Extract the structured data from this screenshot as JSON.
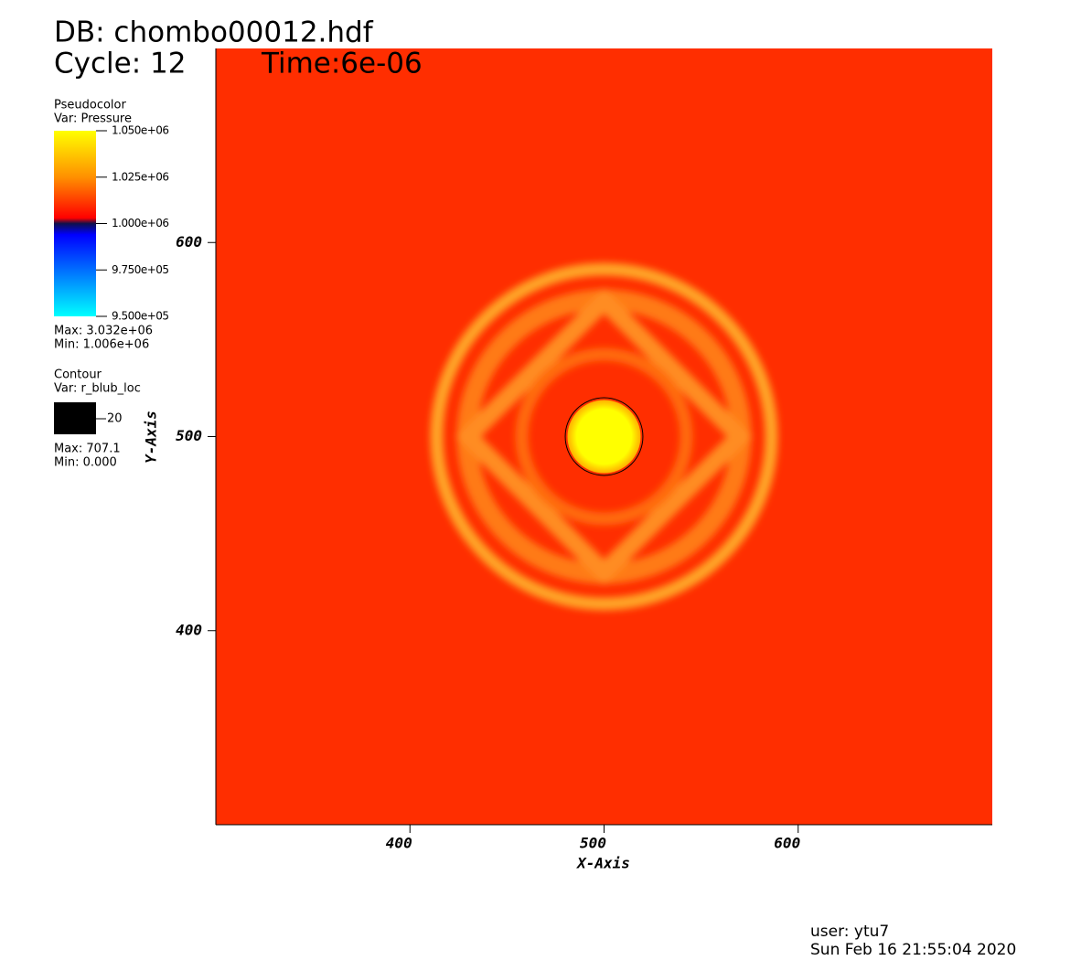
{
  "chart_data": {
    "type": "pseudocolor",
    "title": "DB: chombo00012.hdf",
    "cycle": "Cycle: 12",
    "time": "Time:6e-06",
    "x_label": "X-Axis",
    "y_label": "Y-Axis",
    "xlim": [
      300,
      700
    ],
    "ylim": [
      300,
      700
    ],
    "xticks": [
      400,
      500,
      600
    ],
    "yticks": [
      400,
      500,
      600
    ],
    "color": "#ff2e00",
    "pseudocolor_legend": {
      "plot": "Pseudocolor",
      "var": "Var: Pressure",
      "lim": [
        950000,
        1050000
      ],
      "ticks": [
        {
          "value": 1050000,
          "label": "1.050e+06"
        },
        {
          "value": 1025000,
          "label": "1.025e+06"
        },
        {
          "value": 1000000,
          "label": "1.000e+06"
        },
        {
          "value": 975000,
          "label": "9.750e+05"
        },
        {
          "value": 950000,
          "label": "9.500e+05"
        }
      ],
      "max": "Max:  3.032e+06",
      "min": "Min:  1.006e+06"
    },
    "contour_legend": {
      "plot": "Contour",
      "var": "Var: r_blub_loc",
      "levels": [
        20
      ],
      "color": "#000000",
      "max": "Max:  707.1",
      "min": "Min:  0.000"
    },
    "user": "user: ytu7",
    "date": "Sun Feb 16 21:55:04 2020"
  }
}
